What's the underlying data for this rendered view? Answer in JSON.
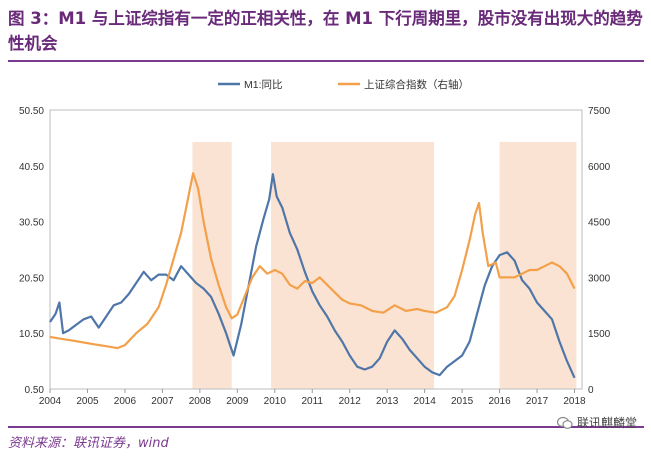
{
  "header": {
    "title": "图 3：M1 与上证综指有一定的正相关性，在 M1 下行周期里，股市没有出现大的趋势性机会"
  },
  "footer": {
    "source": "资料来源：联讯证券，wind",
    "watermark": "联讯麒麟堂"
  },
  "colors": {
    "m1": "#4f76a8",
    "sse": "#f2a04a",
    "shade": "#fbe3d3",
    "title": "#6a2a7a"
  },
  "chart_data": {
    "type": "line",
    "x_ticks": [
      "2004",
      "2005",
      "2006",
      "2007",
      "2008",
      "2009",
      "2010",
      "2011",
      "2012",
      "2013",
      "2014",
      "2015",
      "2016",
      "2017",
      "2018"
    ],
    "x_range": [
      2004.0,
      2018.2
    ],
    "left_axis": {
      "ticks": [
        "0.50",
        "10.50",
        "20.50",
        "30.50",
        "40.50",
        "50.50"
      ],
      "range": [
        0.5,
        50.5
      ]
    },
    "right_axis": {
      "ticks": [
        "0",
        "1500",
        "3000",
        "4500",
        "6000",
        "7500"
      ],
      "range": [
        0,
        7500
      ]
    },
    "legend": {
      "position": "top",
      "entries": [
        "M1:同比",
        "上证综合指数（右轴）"
      ]
    },
    "shaded_periods": [
      [
        2007.8,
        2008.85
      ],
      [
        2009.9,
        2014.25
      ],
      [
        2016.0,
        2018.05
      ]
    ],
    "series": [
      {
        "name": "M1:同比",
        "axis": "left",
        "x": [
          2004.0,
          2004.15,
          2004.25,
          2004.35,
          2004.5,
          2004.7,
          2004.9,
          2005.1,
          2005.3,
          2005.5,
          2005.7,
          2005.9,
          2006.1,
          2006.3,
          2006.5,
          2006.7,
          2006.9,
          2007.1,
          2007.3,
          2007.5,
          2007.7,
          2007.9,
          2008.1,
          2008.3,
          2008.5,
          2008.7,
          2008.8,
          2008.9,
          2009.1,
          2009.3,
          2009.5,
          2009.7,
          2009.85,
          2009.95,
          2010.05,
          2010.2,
          2010.4,
          2010.6,
          2010.8,
          2011.0,
          2011.2,
          2011.4,
          2011.6,
          2011.8,
          2012.0,
          2012.2,
          2012.4,
          2012.6,
          2012.8,
          2013.0,
          2013.2,
          2013.4,
          2013.6,
          2013.8,
          2014.0,
          2014.2,
          2014.4,
          2014.6,
          2014.8,
          2015.0,
          2015.2,
          2015.4,
          2015.6,
          2015.8,
          2016.0,
          2016.2,
          2016.4,
          2016.6,
          2016.8,
          2017.0,
          2017.2,
          2017.4,
          2017.6,
          2017.8,
          2018.0
        ],
        "y": [
          12.5,
          14.0,
          16.0,
          10.5,
          11.0,
          12.0,
          13.0,
          13.5,
          11.5,
          13.5,
          15.5,
          16.0,
          17.5,
          19.5,
          21.5,
          20.0,
          21.0,
          21.0,
          20.0,
          22.5,
          21.0,
          19.5,
          18.5,
          17.0,
          14.0,
          10.5,
          8.5,
          6.5,
          12.0,
          19.0,
          26.0,
          31.0,
          34.5,
          39.0,
          35.0,
          33.0,
          28.5,
          25.5,
          21.5,
          18.0,
          15.5,
          13.5,
          11.0,
          9.0,
          6.5,
          4.5,
          4.0,
          4.5,
          6.0,
          9.0,
          11.0,
          9.5,
          7.5,
          6.0,
          4.5,
          3.5,
          3.0,
          4.5,
          5.5,
          6.5,
          9.0,
          14.0,
          19.0,
          22.5,
          24.5,
          25.0,
          23.5,
          20.0,
          18.5,
          16.0,
          14.5,
          13.0,
          9.0,
          5.5,
          2.5
        ]
      },
      {
        "name": "上证综合指数（右轴）",
        "axis": "right",
        "x": [
          2004.0,
          2004.3,
          2004.6,
          2004.9,
          2005.2,
          2005.5,
          2005.8,
          2006.0,
          2006.3,
          2006.6,
          2006.9,
          2007.1,
          2007.3,
          2007.5,
          2007.7,
          2007.82,
          2007.95,
          2008.1,
          2008.3,
          2008.5,
          2008.7,
          2008.85,
          2009.0,
          2009.2,
          2009.4,
          2009.6,
          2009.8,
          2010.0,
          2010.2,
          2010.4,
          2010.6,
          2010.8,
          2011.0,
          2011.2,
          2011.4,
          2011.6,
          2011.8,
          2012.0,
          2012.3,
          2012.6,
          2012.9,
          2013.2,
          2013.5,
          2013.8,
          2014.0,
          2014.3,
          2014.6,
          2014.8,
          2015.0,
          2015.2,
          2015.35,
          2015.45,
          2015.55,
          2015.7,
          2015.9,
          2016.0,
          2016.2,
          2016.4,
          2016.6,
          2016.8,
          2017.0,
          2017.2,
          2017.4,
          2017.6,
          2017.8,
          2018.0
        ],
        "y": [
          1400,
          1350,
          1300,
          1250,
          1200,
          1150,
          1100,
          1180,
          1500,
          1750,
          2200,
          2800,
          3500,
          4200,
          5200,
          5800,
          5400,
          4500,
          3500,
          2800,
          2200,
          1900,
          2000,
          2500,
          3000,
          3300,
          3100,
          3200,
          3100,
          2800,
          2700,
          2900,
          2850,
          3000,
          2800,
          2600,
          2400,
          2300,
          2250,
          2100,
          2050,
          2250,
          2100,
          2150,
          2100,
          2050,
          2200,
          2500,
          3200,
          4000,
          4700,
          5000,
          4200,
          3300,
          3400,
          3000,
          3000,
          3000,
          3100,
          3200,
          3200,
          3300,
          3400,
          3300,
          3100,
          2700
        ]
      }
    ]
  }
}
